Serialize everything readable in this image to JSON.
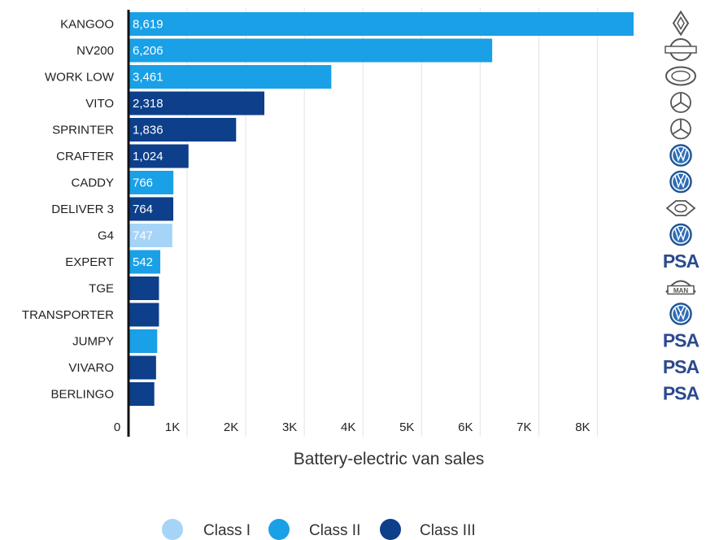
{
  "chart_data": {
    "type": "bar",
    "orientation": "horizontal",
    "title": "",
    "xlabel": "Battery-electric van sales",
    "ylabel": "",
    "xlim": [
      0,
      9000
    ],
    "x_ticks": [
      0,
      1000,
      2000,
      3000,
      4000,
      5000,
      6000,
      7000,
      8000
    ],
    "x_tick_labels": [
      "0",
      "1K",
      "2K",
      "3K",
      "4K",
      "5K",
      "6K",
      "7K",
      "8K"
    ],
    "grid": "vertical",
    "legend_position": "bottom-center",
    "categories": [
      "KANGOO",
      "NV200",
      "WORK LOW",
      "VITO",
      "SPRINTER",
      "CRAFTER",
      "CADDY",
      "DELIVER 3",
      "G4",
      "EXPERT",
      "TGE",
      "TRANSPORTER",
      "JUMPY",
      "VIVARO",
      "BERLINGO"
    ],
    "values": [
      8619,
      6206,
      3461,
      2318,
      1836,
      1024,
      766,
      764,
      747,
      542,
      520,
      520,
      490,
      470,
      440
    ],
    "value_labels": [
      "8,619",
      "6,206",
      "3,461",
      "2,318",
      "1,836",
      "1,024",
      "766",
      "764",
      "747",
      "542",
      "",
      "",
      "",
      "",
      ""
    ],
    "classes": [
      "Class II",
      "Class II",
      "Class II",
      "Class III",
      "Class III",
      "Class III",
      "Class II",
      "Class III",
      "Class I",
      "Class II",
      "Class III",
      "Class III",
      "Class II",
      "Class III",
      "Class III"
    ],
    "series": [
      {
        "name": "Class I",
        "color": "#a6d4f7"
      },
      {
        "name": "Class II",
        "color": "#1aa0e6"
      },
      {
        "name": "Class III",
        "color": "#0d3f8a"
      }
    ],
    "brand_logos": [
      "renault-logo",
      "nissan-logo",
      "saic-logo",
      "mercedes-logo",
      "mercedes-logo",
      "vw-logo",
      "vw-logo",
      "ldv-logo",
      "vw-logo",
      "psa-logo",
      "man-logo",
      "vw-logo",
      "psa-logo",
      "psa-logo",
      "psa-logo"
    ],
    "psa_logo_text": "PSA",
    "man_logo_text": "MAN"
  }
}
